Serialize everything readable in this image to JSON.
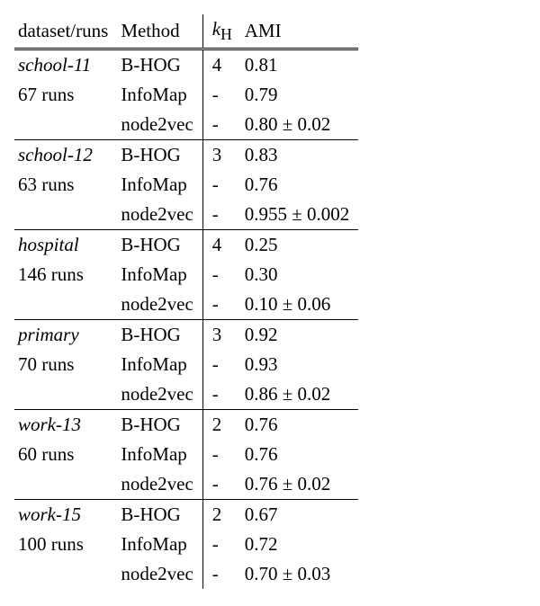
{
  "table": {
    "type": "table",
    "background_color": "#ffffff",
    "text_color": "#000000",
    "font_family": "Times New Roman",
    "font_size_pt": 16,
    "border_color": "#000000",
    "columns": [
      {
        "label": "dataset/runs",
        "align": "left"
      },
      {
        "label": "Method",
        "align": "left"
      },
      {
        "label": "k_H",
        "align": "left",
        "vbar_left": true
      },
      {
        "label": "AMI",
        "align": "left"
      }
    ],
    "k_header_prefix": "k",
    "k_header_sub": "H",
    "groups": [
      {
        "dataset": "school-11",
        "runs": "67 runs",
        "rows": [
          {
            "method": "B-HOG",
            "k": "4",
            "ami": "0.81"
          },
          {
            "method": "InfoMap",
            "k": "-",
            "ami": "0.79"
          },
          {
            "method": "node2vec",
            "k": "-",
            "ami": "0.80 ± 0.02"
          }
        ]
      },
      {
        "dataset": "school-12",
        "runs": "63 runs",
        "rows": [
          {
            "method": "B-HOG",
            "k": "3",
            "ami": "0.83"
          },
          {
            "method": "InfoMap",
            "k": "-",
            "ami": "0.76"
          },
          {
            "method": "node2vec",
            "k": "-",
            "ami": "0.955 ± 0.002"
          }
        ]
      },
      {
        "dataset": "hospital",
        "runs": "146 runs",
        "rows": [
          {
            "method": "B-HOG",
            "k": "4",
            "ami": "0.25"
          },
          {
            "method": "InfoMap",
            "k": "-",
            "ami": "0.30"
          },
          {
            "method": "node2vec",
            "k": "-",
            "ami": "0.10 ± 0.06"
          }
        ]
      },
      {
        "dataset": "primary",
        "runs": "70 runs",
        "rows": [
          {
            "method": "B-HOG",
            "k": "3",
            "ami": "0.92"
          },
          {
            "method": "InfoMap",
            "k": "-",
            "ami": "0.93"
          },
          {
            "method": "node2vec",
            "k": "-",
            "ami": "0.86 ± 0.02"
          }
        ]
      },
      {
        "dataset": "work-13",
        "runs": "60 runs",
        "rows": [
          {
            "method": "B-HOG",
            "k": "2",
            "ami": "0.76"
          },
          {
            "method": "InfoMap",
            "k": "-",
            "ami": "0.76"
          },
          {
            "method": "node2vec",
            "k": "-",
            "ami": "0.76 ± 0.02"
          }
        ]
      },
      {
        "dataset": "work-15",
        "runs": "100 runs",
        "rows": [
          {
            "method": "B-HOG",
            "k": "2",
            "ami": "0.67"
          },
          {
            "method": "InfoMap",
            "k": "-",
            "ami": "0.72"
          },
          {
            "method": "node2vec",
            "k": "-",
            "ami": "0.70 ± 0.03"
          }
        ]
      }
    ]
  }
}
